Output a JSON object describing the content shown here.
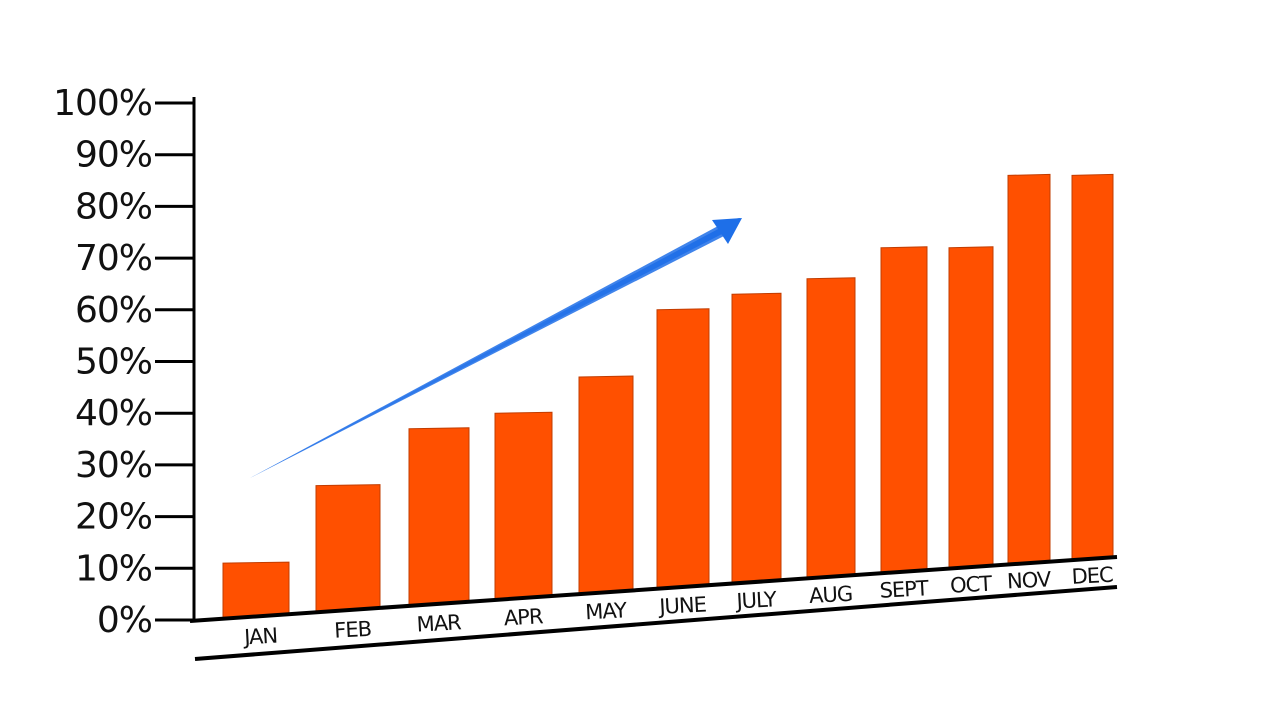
{
  "chart_data": {
    "type": "bar",
    "title": "",
    "xlabel": "",
    "ylabel": "",
    "categories": [
      "JAN",
      "FEB",
      "MAR",
      "APR",
      "MAY",
      "JUNE",
      "JULY",
      "AUG",
      "SEPT",
      "OCT",
      "NOV",
      "DEC"
    ],
    "values": [
      11,
      26,
      37,
      40,
      47,
      60,
      63,
      66,
      72,
      72,
      86,
      86
    ],
    "ylim": [
      0,
      100
    ],
    "yticks": [
      "0%",
      "10%",
      "20%",
      "30%",
      "40%",
      "50%",
      "60%",
      "70%",
      "80%",
      "90%",
      "100%"
    ],
    "grid": false,
    "bar_color": "#FF5000",
    "arrow_color": "#1E6FE8",
    "annotation": "upward trend arrow"
  }
}
